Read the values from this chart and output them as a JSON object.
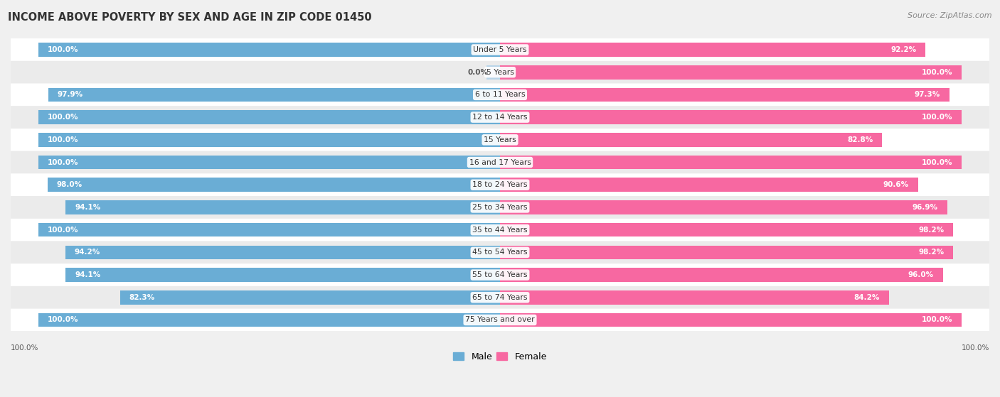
{
  "title": "INCOME ABOVE POVERTY BY SEX AND AGE IN ZIP CODE 01450",
  "source": "Source: ZipAtlas.com",
  "categories": [
    "Under 5 Years",
    "5 Years",
    "6 to 11 Years",
    "12 to 14 Years",
    "15 Years",
    "16 and 17 Years",
    "18 to 24 Years",
    "25 to 34 Years",
    "35 to 44 Years",
    "45 to 54 Years",
    "55 to 64 Years",
    "65 to 74 Years",
    "75 Years and over"
  ],
  "male": [
    100.0,
    0.0,
    97.9,
    100.0,
    100.0,
    100.0,
    98.0,
    94.1,
    100.0,
    94.2,
    94.1,
    82.3,
    100.0
  ],
  "female": [
    92.2,
    100.0,
    97.3,
    100.0,
    82.8,
    100.0,
    90.6,
    96.9,
    98.2,
    98.2,
    96.0,
    84.2,
    100.0
  ],
  "male_color": "#6aadd5",
  "female_color": "#f768a1",
  "female_color_light": "#f9c6db",
  "male_color_light": "#b8d4e8",
  "row_color_dark": "#e8e8e8",
  "row_color_light": "#f5f5f5",
  "bg_color": "#f0f0f0",
  "bar_height": 0.62,
  "label_fontsize": 7.8,
  "value_fontsize": 7.5,
  "title_fontsize": 10.5,
  "source_fontsize": 8
}
